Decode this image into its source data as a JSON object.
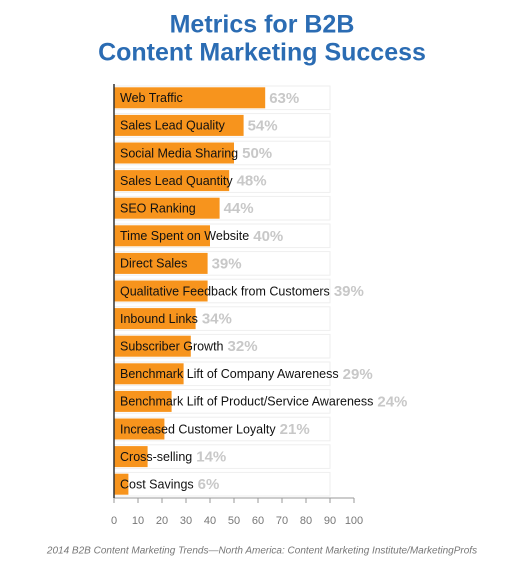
{
  "chart_data": {
    "type": "hbar",
    "title": [
      "Metrics for B2B",
      "Content Marketing Success"
    ],
    "categories": [
      "Web Traffic",
      "Sales Lead Quality",
      "Social Media Sharing",
      "Sales Lead Quantity",
      "SEO Ranking",
      "Time Spent on Website",
      "Direct Sales",
      "Qualitative Feedback from Customers",
      "Inbound Links",
      "Subscriber Growth",
      "Benchmark Lift of Company Awareness",
      "Benchmark Lift of Product/Service Awareness",
      "Increased Customer Loyalty",
      "Cross-selling",
      "Cost Savings"
    ],
    "values": [
      63,
      54,
      50,
      48,
      44,
      40,
      39,
      39,
      34,
      32,
      29,
      24,
      21,
      14,
      6
    ],
    "value_labels": [
      "63%",
      "54%",
      "50%",
      "48%",
      "44%",
      "40%",
      "39%",
      "39%",
      "34%",
      "32%",
      "29%",
      "24%",
      "21%",
      "14%",
      "6%"
    ],
    "color": "#f7941d",
    "xlim": [
      0,
      100
    ],
    "xticks": [
      0,
      10,
      20,
      30,
      40,
      50,
      60,
      70,
      80,
      90,
      100
    ],
    "source": "2014 B2B Content Marketing Trends—North America: Content Marketing Institute/MarketingProfs"
  }
}
